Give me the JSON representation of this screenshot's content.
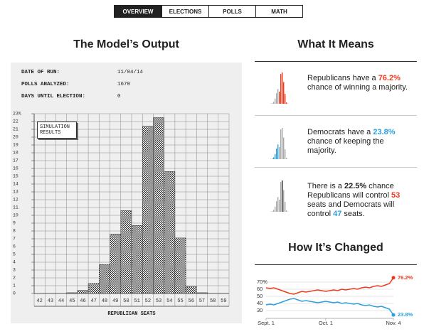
{
  "nav": [
    "OVERVIEW",
    "ELECTIONS",
    "POLLS",
    "MATH"
  ],
  "output_title": "The Model’s Output",
  "run_info": [
    [
      "DATE OF RUN:",
      "11/04/14"
    ],
    [
      "POLLS ANALYZED:",
      "1670"
    ],
    [
      "DAYS UNTIL ELECTION:",
      "0"
    ]
  ],
  "means_title": "What It Means",
  "means": [
    [
      "Republicans have a ",
      "76.2%",
      " chance of winning a majority."
    ],
    [
      "Democrats have a ",
      "23.8%",
      " chance of keeping the majority."
    ],
    [
      "There is a ",
      "22.5%",
      " chance Republicans will control ",
      "53",
      " seats and Democrats will control ",
      "47",
      " seats."
    ]
  ],
  "changed_title": "How It’s Changed",
  "chart_data": [
    {
      "type": "bar",
      "categories": [
        "42",
        "43",
        "44",
        "45",
        "46",
        "47",
        "48",
        "49",
        "50",
        "51",
        "52",
        "53",
        "54",
        "55",
        "56",
        "57",
        "58",
        "59"
      ],
      "series": [
        {
          "name": "SIMULATION RESULTS",
          "color": "#333333",
          "values": [
            0,
            0,
            0,
            0.1,
            0.4,
            1.3,
            3.7,
            7.6,
            10.6,
            8.7,
            21.4,
            22.5,
            15.6,
            7.1,
            0.9,
            0.1,
            0,
            0
          ]
        }
      ],
      "ylim": [
        0,
        23
      ],
      "yticks": [
        0,
        1,
        2,
        3,
        4,
        5,
        6,
        7,
        8,
        9,
        10,
        11,
        12,
        13,
        14,
        15,
        16,
        17,
        18,
        19,
        20,
        21,
        22,
        {
          "value": 23,
          "label": "23%"
        }
      ],
      "xlabel": "REPUBLICAN SEATS",
      "grid": true
    },
    {
      "type": "line",
      "categories": [
        "Sept. 1",
        null,
        null,
        null,
        null,
        null,
        null,
        null,
        null,
        null,
        null,
        null,
        null,
        null,
        null,
        "Oct. 1",
        null,
        null,
        null,
        null,
        null,
        null,
        null,
        null,
        null,
        null,
        null,
        null,
        null,
        null,
        null,
        null,
        "Nov. 4"
      ],
      "series": [
        {
          "color": "#ed3b1c",
          "values": [
            62,
            61,
            62,
            60,
            58,
            56,
            54,
            53,
            55,
            57,
            56,
            57,
            58,
            59,
            58,
            57,
            58,
            59,
            58,
            60,
            59,
            60,
            61,
            60,
            62,
            63,
            62,
            64,
            65,
            64,
            66,
            68,
            76.2
          ],
          "value_labels": [
            null,
            null,
            null,
            null,
            null,
            null,
            null,
            null,
            null,
            null,
            null,
            null,
            null,
            null,
            null,
            null,
            null,
            null,
            null,
            null,
            null,
            null,
            null,
            null,
            null,
            null,
            null,
            null,
            null,
            null,
            null,
            null,
            "76.2%"
          ]
        },
        {
          "color": "#2c9fdf",
          "values": [
            38,
            39,
            38,
            40,
            42,
            44,
            46,
            47,
            45,
            43,
            44,
            43,
            42,
            41,
            42,
            43,
            42,
            41,
            42,
            40,
            41,
            40,
            39,
            40,
            38,
            37,
            38,
            36,
            35,
            36,
            34,
            32,
            23.8
          ],
          "value_labels": [
            null,
            null,
            null,
            null,
            null,
            null,
            null,
            null,
            null,
            null,
            null,
            null,
            null,
            null,
            null,
            null,
            null,
            null,
            null,
            null,
            null,
            null,
            null,
            null,
            null,
            null,
            null,
            null,
            null,
            null,
            null,
            null,
            "23.8%"
          ]
        }
      ],
      "ylim": [
        20,
        80
      ],
      "yticks": [
        {
          "value": 70,
          "label": "70%"
        },
        60,
        50,
        40,
        30
      ],
      "grid": true
    }
  ]
}
